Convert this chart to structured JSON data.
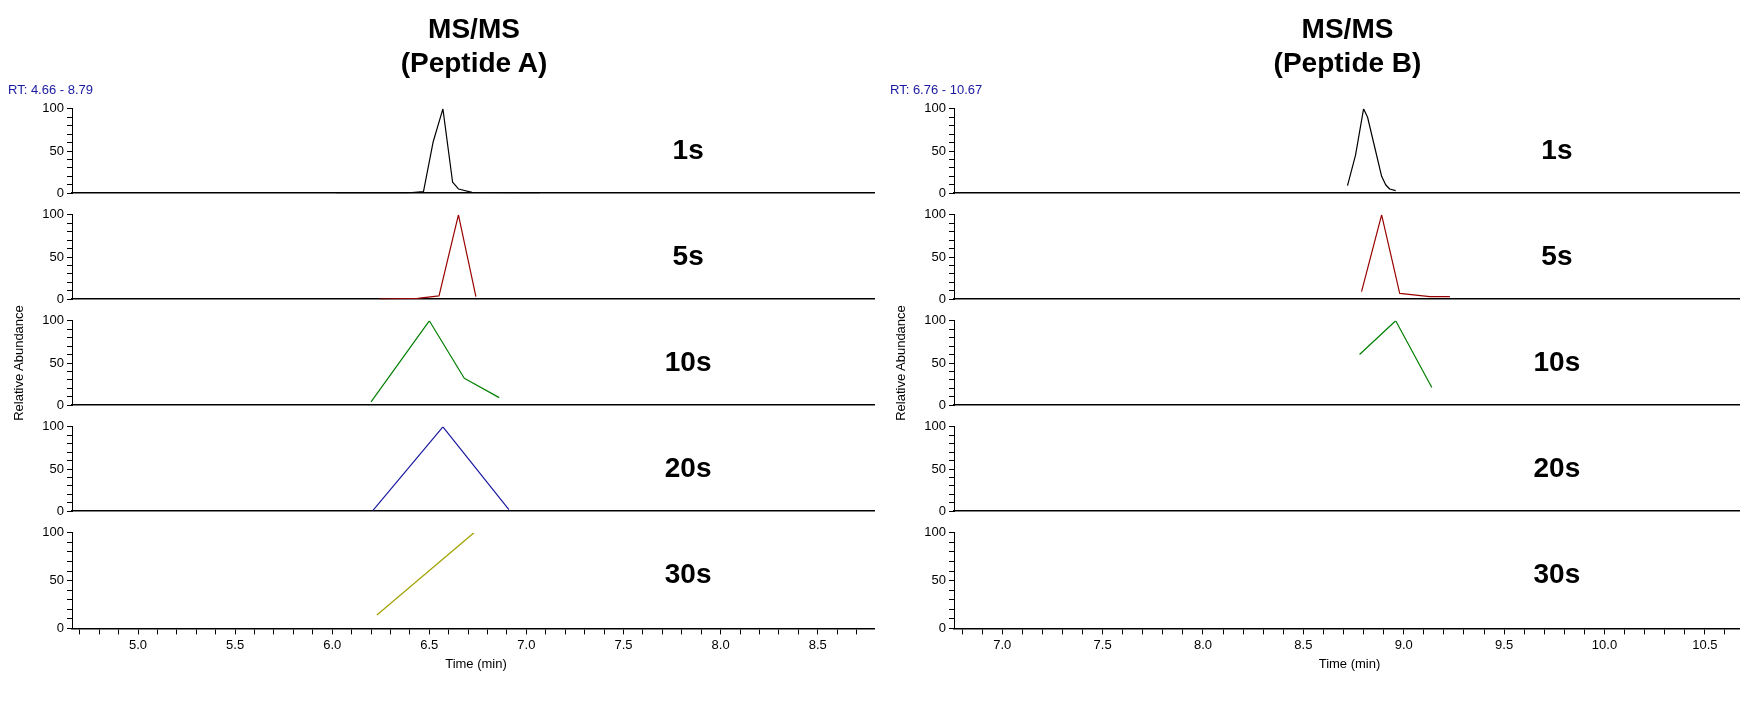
{
  "chart_data": [
    {
      "type": "line",
      "title": "MS/MS\n(Peptide A)",
      "subtitle": "RT: 4.66 - 8.79",
      "annotations": [
        "1s"
      ],
      "xlim": [
        4.66,
        8.79
      ],
      "ylim": [
        0,
        100
      ],
      "tick_labels": "y",
      "yticks": [
        0,
        {
          "value": 10,
          "label": null
        },
        {
          "value": 20,
          "label": null
        },
        {
          "value": 30,
          "label": null
        },
        {
          "value": 40,
          "label": null
        },
        50,
        {
          "value": 60,
          "label": null
        },
        {
          "value": 70,
          "label": null
        },
        {
          "value": 80,
          "label": null
        },
        {
          "value": 90,
          "label": null
        },
        100
      ],
      "series": [
        {
          "color": "#000000",
          "x": [
            6.02,
            6.38,
            6.47,
            6.52,
            6.57,
            6.62,
            6.65,
            6.72,
            7.07
          ],
          "values": [
            0,
            0,
            2,
            61,
            100,
            13,
            5,
            1,
            0
          ]
        }
      ]
    },
    {
      "type": "line",
      "annotations": [
        "5s"
      ],
      "xlim": [
        4.66,
        8.79
      ],
      "ylim": [
        0,
        100
      ],
      "tick_labels": "y",
      "yticks": [
        0,
        {
          "value": 10,
          "label": null
        },
        {
          "value": 20,
          "label": null
        },
        {
          "value": 30,
          "label": null
        },
        {
          "value": 40,
          "label": null
        },
        50,
        {
          "value": 60,
          "label": null
        },
        {
          "value": 70,
          "label": null
        },
        {
          "value": 80,
          "label": null
        },
        {
          "value": 90,
          "label": null
        },
        100
      ],
      "series": [
        {
          "color": "#990000",
          "x": [
            6.24,
            6.44,
            6.55,
            6.65,
            6.74
          ],
          "values": [
            0,
            1,
            4,
            100,
            3
          ]
        }
      ]
    },
    {
      "type": "line",
      "annotations": [
        "10s"
      ],
      "ylabel": "Relative Abundance",
      "xlim": [
        4.66,
        8.79
      ],
      "ylim": [
        0,
        100
      ],
      "tick_labels": "y",
      "yticks": [
        0,
        {
          "value": 10,
          "label": null
        },
        {
          "value": 20,
          "label": null
        },
        {
          "value": 30,
          "label": null
        },
        {
          "value": 40,
          "label": null
        },
        50,
        {
          "value": 60,
          "label": null
        },
        {
          "value": 70,
          "label": null
        },
        {
          "value": 80,
          "label": null
        },
        {
          "value": 90,
          "label": null
        },
        100
      ],
      "series": [
        {
          "color": "#008000",
          "x": [
            6.2,
            6.5,
            6.68,
            6.86
          ],
          "values": [
            4,
            100,
            32,
            9
          ]
        }
      ]
    },
    {
      "type": "line",
      "annotations": [
        "20s"
      ],
      "xlim": [
        4.66,
        8.79
      ],
      "ylim": [
        0,
        100
      ],
      "tick_labels": "y",
      "yticks": [
        0,
        {
          "value": 10,
          "label": null
        },
        {
          "value": 20,
          "label": null
        },
        {
          "value": 30,
          "label": null
        },
        {
          "value": 40,
          "label": null
        },
        50,
        {
          "value": 60,
          "label": null
        },
        {
          "value": 70,
          "label": null
        },
        {
          "value": 80,
          "label": null
        },
        {
          "value": 90,
          "label": null
        },
        100
      ],
      "series": [
        {
          "color": "#1a1aa0",
          "x": [
            6.21,
            6.57,
            6.91
          ],
          "values": [
            1,
            100,
            2
          ]
        }
      ]
    },
    {
      "type": "line",
      "annotations": [
        "30s"
      ],
      "xlabel": "Time (min)",
      "xlim": [
        4.66,
        8.79
      ],
      "ylim": [
        0,
        100
      ],
      "xticks": [
        {
          "value": 4.7,
          "label": null
        },
        {
          "value": 4.8,
          "label": null
        },
        {
          "value": 4.9,
          "label": null
        },
        {
          "value": 5,
          "label": "5.0"
        },
        {
          "value": 5.1,
          "label": null
        },
        {
          "value": 5.2,
          "label": null
        },
        {
          "value": 5.3,
          "label": null
        },
        {
          "value": 5.4,
          "label": null
        },
        {
          "value": 5.5,
          "label": "5.5"
        },
        {
          "value": 5.6,
          "label": null
        },
        {
          "value": 5.7,
          "label": null
        },
        {
          "value": 5.8,
          "label": null
        },
        {
          "value": 5.9,
          "label": null
        },
        {
          "value": 6,
          "label": "6.0"
        },
        {
          "value": 6.1,
          "label": null
        },
        {
          "value": 6.2,
          "label": null
        },
        {
          "value": 6.3,
          "label": null
        },
        {
          "value": 6.4,
          "label": null
        },
        {
          "value": 6.5,
          "label": "6.5"
        },
        {
          "value": 6.6,
          "label": null
        },
        {
          "value": 6.7,
          "label": null
        },
        {
          "value": 6.8,
          "label": null
        },
        {
          "value": 6.9,
          "label": null
        },
        {
          "value": 7,
          "label": "7.0"
        },
        {
          "value": 7.1,
          "label": null
        },
        {
          "value": 7.2,
          "label": null
        },
        {
          "value": 7.3,
          "label": null
        },
        {
          "value": 7.4,
          "label": null
        },
        {
          "value": 7.5,
          "label": "7.5"
        },
        {
          "value": 7.6,
          "label": null
        },
        {
          "value": 7.7,
          "label": null
        },
        {
          "value": 7.8,
          "label": null
        },
        {
          "value": 7.9,
          "label": null
        },
        {
          "value": 8,
          "label": "8.0"
        },
        {
          "value": 8.1,
          "label": null
        },
        {
          "value": 8.2,
          "label": null
        },
        {
          "value": 8.3,
          "label": null
        },
        {
          "value": 8.4,
          "label": null
        },
        {
          "value": 8.5,
          "label": "8.5"
        },
        {
          "value": 8.6,
          "label": null
        },
        {
          "value": 8.7,
          "label": null
        }
      ],
      "yticks": [
        0,
        {
          "value": 10,
          "label": null
        },
        {
          "value": 20,
          "label": null
        },
        {
          "value": 30,
          "label": null
        },
        {
          "value": 40,
          "label": null
        },
        50,
        {
          "value": 60,
          "label": null
        },
        {
          "value": 70,
          "label": null
        },
        {
          "value": 80,
          "label": null
        },
        {
          "value": 90,
          "label": null
        },
        100
      ],
      "series": [
        {
          "color": "#a0a000",
          "x": [
            6.23,
            6.73
          ],
          "values": [
            14,
            100
          ]
        }
      ]
    },
    {
      "type": "line",
      "title": "MS/MS\n(Peptide B)",
      "subtitle": "RT: 6.76 - 10.67",
      "annotations": [
        "1s"
      ],
      "xlim": [
        6.76,
        10.67
      ],
      "ylim": [
        0,
        100
      ],
      "tick_labels": "y",
      "yticks": [
        0,
        {
          "value": 10,
          "label": null
        },
        {
          "value": 20,
          "label": null
        },
        {
          "value": 30,
          "label": null
        },
        {
          "value": 40,
          "label": null
        },
        50,
        {
          "value": 60,
          "label": null
        },
        {
          "value": 70,
          "label": null
        },
        {
          "value": 80,
          "label": null
        },
        {
          "value": 90,
          "label": null
        },
        100
      ],
      "series": [
        {
          "color": "#000000",
          "x": [
            8.72,
            8.76,
            8.8,
            8.82,
            8.86,
            8.89,
            8.91,
            8.93,
            8.96
          ],
          "values": [
            9,
            45,
            100,
            90,
            50,
            20,
            10,
            5,
            3
          ]
        }
      ]
    },
    {
      "type": "line",
      "annotations": [
        "5s"
      ],
      "xlim": [
        6.76,
        10.67
      ],
      "ylim": [
        0,
        100
      ],
      "tick_labels": "y",
      "yticks": [
        0,
        {
          "value": 10,
          "label": null
        },
        {
          "value": 20,
          "label": null
        },
        {
          "value": 30,
          "label": null
        },
        {
          "value": 40,
          "label": null
        },
        50,
        {
          "value": 60,
          "label": null
        },
        {
          "value": 70,
          "label": null
        },
        {
          "value": 80,
          "label": null
        },
        {
          "value": 90,
          "label": null
        },
        100
      ],
      "series": [
        {
          "color": "#990000",
          "x": [
            8.79,
            8.89,
            8.98,
            9.13,
            9.23
          ],
          "values": [
            9,
            100,
            7,
            3,
            3
          ]
        }
      ]
    },
    {
      "type": "line",
      "annotations": [
        "10s"
      ],
      "ylabel": "Relative Abundance",
      "xlim": [
        6.76,
        10.67
      ],
      "ylim": [
        0,
        100
      ],
      "tick_labels": "y",
      "yticks": [
        0,
        {
          "value": 10,
          "label": null
        },
        {
          "value": 20,
          "label": null
        },
        {
          "value": 30,
          "label": null
        },
        {
          "value": 40,
          "label": null
        },
        50,
        {
          "value": 60,
          "label": null
        },
        {
          "value": 70,
          "label": null
        },
        {
          "value": 80,
          "label": null
        },
        {
          "value": 90,
          "label": null
        },
        100
      ],
      "series": [
        {
          "color": "#008000",
          "x": [
            8.78,
            8.96,
            9.14
          ],
          "values": [
            60,
            100,
            21
          ]
        }
      ]
    },
    {
      "type": "line",
      "annotations": [
        "20s"
      ],
      "xlim": [
        6.76,
        10.67
      ],
      "ylim": [
        0,
        100
      ],
      "tick_labels": "y",
      "yticks": [
        0,
        {
          "value": 10,
          "label": null
        },
        {
          "value": 20,
          "label": null
        },
        {
          "value": 30,
          "label": null
        },
        {
          "value": 40,
          "label": null
        },
        50,
        {
          "value": 60,
          "label": null
        },
        {
          "value": 70,
          "label": null
        },
        {
          "value": 80,
          "label": null
        },
        {
          "value": 90,
          "label": null
        },
        100
      ]
    },
    {
      "type": "line",
      "annotations": [
        "30s"
      ],
      "xlabel": "Time (min)",
      "xlim": [
        6.76,
        10.67
      ],
      "ylim": [
        0,
        100
      ],
      "xticks": [
        {
          "value": 6.8,
          "label": null
        },
        {
          "value": 6.9,
          "label": null
        },
        {
          "value": 7,
          "label": "7.0"
        },
        {
          "value": 7.1,
          "label": null
        },
        {
          "value": 7.2,
          "label": null
        },
        {
          "value": 7.3,
          "label": null
        },
        {
          "value": 7.4,
          "label": null
        },
        {
          "value": 7.5,
          "label": "7.5"
        },
        {
          "value": 7.6,
          "label": null
        },
        {
          "value": 7.7,
          "label": null
        },
        {
          "value": 7.8,
          "label": null
        },
        {
          "value": 7.9,
          "label": null
        },
        {
          "value": 8,
          "label": "8.0"
        },
        {
          "value": 8.1,
          "label": null
        },
        {
          "value": 8.2,
          "label": null
        },
        {
          "value": 8.3,
          "label": null
        },
        {
          "value": 8.4,
          "label": null
        },
        {
          "value": 8.5,
          "label": "8.5"
        },
        {
          "value": 8.6,
          "label": null
        },
        {
          "value": 8.7,
          "label": null
        },
        {
          "value": 8.8,
          "label": null
        },
        {
          "value": 8.9,
          "label": null
        },
        {
          "value": 9,
          "label": "9.0"
        },
        {
          "value": 9.1,
          "label": null
        },
        {
          "value": 9.2,
          "label": null
        },
        {
          "value": 9.3,
          "label": null
        },
        {
          "value": 9.4,
          "label": null
        },
        {
          "value": 9.5,
          "label": "9.5"
        },
        {
          "value": 9.6,
          "label": null
        },
        {
          "value": 9.7,
          "label": null
        },
        {
          "value": 9.8,
          "label": null
        },
        {
          "value": 9.9,
          "label": null
        },
        {
          "value": 10,
          "label": "10.0"
        },
        {
          "value": 10.1,
          "label": null
        },
        {
          "value": 10.2,
          "label": null
        },
        {
          "value": 10.3,
          "label": null
        },
        {
          "value": 10.4,
          "label": null
        },
        {
          "value": 10.5,
          "label": "10.5"
        },
        {
          "value": 10.6,
          "label": null
        }
      ],
      "yticks": [
        0,
        {
          "value": 10,
          "label": null
        },
        {
          "value": 20,
          "label": null
        },
        {
          "value": 30,
          "label": null
        },
        {
          "value": 40,
          "label": null
        },
        50,
        {
          "value": 60,
          "label": null
        },
        {
          "value": 70,
          "label": null
        },
        {
          "value": 80,
          "label": null
        },
        {
          "value": 90,
          "label": null
        },
        100
      ]
    }
  ]
}
